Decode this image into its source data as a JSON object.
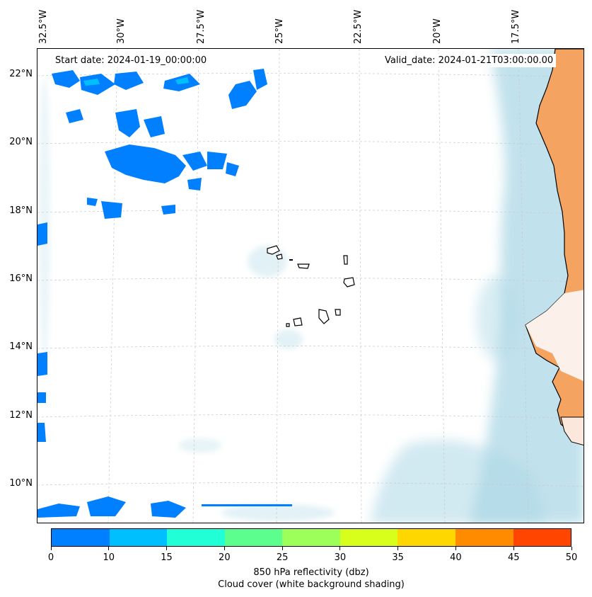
{
  "header": {
    "start_date": "Start date: 2024-01-19_00:00:00",
    "valid_date": "Valid_date: 2024-01-21T03:00:00.00"
  },
  "map": {
    "longitude_labels": [
      "32.5°W",
      "30°W",
      "27.5°W",
      "25°W",
      "22.5°W",
      "20°W",
      "17.5°W"
    ],
    "latitude_labels": [
      "22°N",
      "20°N",
      "18°N",
      "16°N",
      "14°N",
      "12°N",
      "10°N"
    ],
    "colors": {
      "land_orange": "#f4a460",
      "cloud_shade": "#add8e6",
      "reflectivity_blue": "#0080ff",
      "reflectivity_cyan": "#00bfff",
      "coastline": "#000000",
      "gridline": "#c8c8c8"
    }
  },
  "colorbar": {
    "tick_labels": [
      "0",
      "10",
      "15",
      "20",
      "25",
      "30",
      "35",
      "40",
      "45",
      "50"
    ],
    "colors": [
      "#0080ff",
      "#00bfff",
      "#20ffd6",
      "#5cff8e",
      "#9cff5a",
      "#d8ff1c",
      "#ffd700",
      "#ff8c00",
      "#ff4500"
    ],
    "label": "850 hPa reflectivity (dbz)",
    "sublabel": "Cloud cover (white background shading)"
  }
}
